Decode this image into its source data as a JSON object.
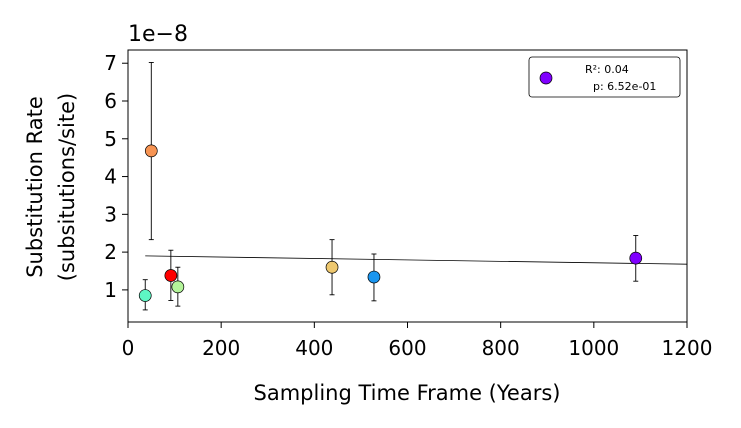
{
  "chart_data": {
    "type": "scatter",
    "title": "",
    "xlabel": "Sampling Time Frame (Years)",
    "ylabel_line1": "Substitution Rate",
    "ylabel_line2": "(subsitutions/site)",
    "offset_text": "1e−8",
    "xlim": [
      0,
      1200
    ],
    "ylim": [
      0.15,
      7.35
    ],
    "xticks": [
      0,
      200,
      400,
      600,
      800,
      1000,
      1200
    ],
    "yticks": [
      1,
      2,
      3,
      4,
      5,
      6,
      7
    ],
    "grid": false,
    "points": [
      {
        "x": 37,
        "y": 0.85,
        "ylow": 0.47,
        "yhigh": 1.27,
        "color": "#5ef7c4"
      },
      {
        "x": 50,
        "y": 4.68,
        "ylow": 2.33,
        "yhigh": 7.02,
        "color": "#f79453"
      },
      {
        "x": 92,
        "y": 1.38,
        "ylow": 0.72,
        "yhigh": 2.05,
        "color": "#ff0000"
      },
      {
        "x": 107,
        "y": 1.08,
        "ylow": 0.57,
        "yhigh": 1.6,
        "color": "#b4f49a"
      },
      {
        "x": 438,
        "y": 1.6,
        "ylow": 0.87,
        "yhigh": 2.33,
        "color": "#eec86f"
      },
      {
        "x": 528,
        "y": 1.34,
        "ylow": 0.71,
        "yhigh": 1.95,
        "color": "#1a96f0"
      },
      {
        "x": 1090,
        "y": 1.84,
        "ylow": 1.23,
        "yhigh": 2.44,
        "color": "#8000ff"
      }
    ],
    "regression": {
      "x": [
        37,
        1200
      ],
      "y": [
        1.9,
        1.68
      ]
    },
    "legend": {
      "placement": "upper-right",
      "marker_color": "#8000ff",
      "line1": "R²: 0.04",
      "line2": "p: 6.52e-01"
    }
  }
}
